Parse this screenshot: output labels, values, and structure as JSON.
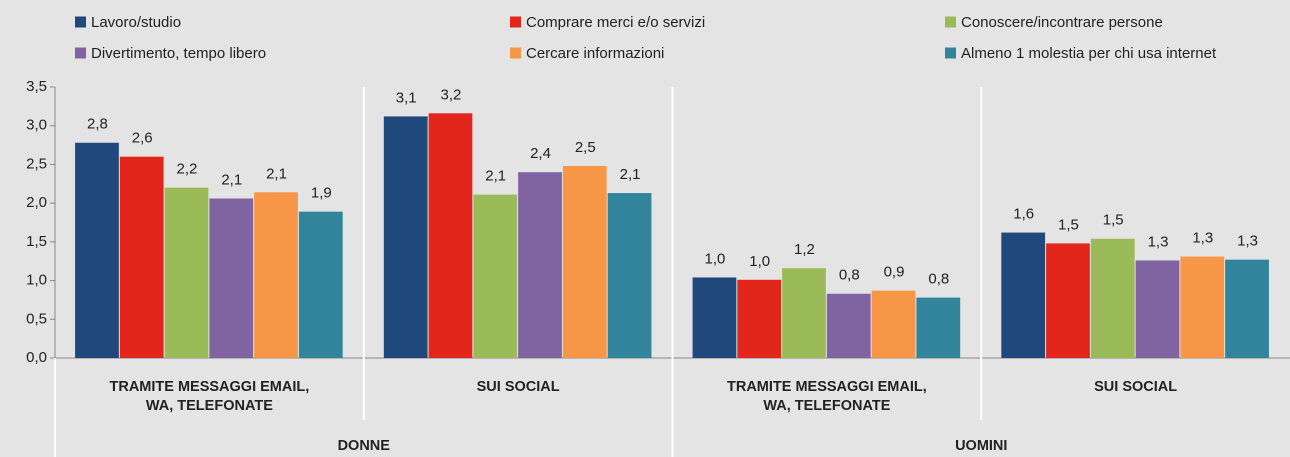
{
  "chart_data": {
    "type": "bar",
    "groups": [
      {
        "name": "DONNE",
        "categories": [
          "TRAMITE MESSAGGI EMAIL, WA, TELEFONATE",
          "SUI SOCIAL"
        ]
      },
      {
        "name": "UOMINI",
        "categories": [
          "TRAMITE MESSAGGI EMAIL, WA, TELEFONATE",
          "SUI SOCIAL"
        ]
      }
    ],
    "series": [
      {
        "name": "Lavoro/studio",
        "color": "#1f497d",
        "values": [
          2.78,
          3.12,
          1.04,
          1.62
        ],
        "value_labels": [
          "2,8",
          "3,1",
          "1,0",
          "1,6"
        ]
      },
      {
        "name": "Comprare merci e/o servizi",
        "color": "#e3261b",
        "values": [
          2.6,
          3.16,
          1.01,
          1.48
        ],
        "value_labels": [
          "2,6",
          "3,2",
          "1,0",
          "1,5"
        ]
      },
      {
        "name": "Conoscere/incontrare persone",
        "color": "#9bbb59",
        "values": [
          2.2,
          2.11,
          1.16,
          1.54
        ],
        "value_labels": [
          "2,2",
          "2,1",
          "1,2",
          "1,5"
        ]
      },
      {
        "name": "Divertimento, tempo libero",
        "color": "#8064a2",
        "values": [
          2.06,
          2.4,
          0.83,
          1.26
        ],
        "value_labels": [
          "2,1",
          "2,4",
          "0,8",
          "1,3"
        ]
      },
      {
        "name": "Cercare informazioni",
        "color": "#f79646",
        "values": [
          2.14,
          2.48,
          0.87,
          1.31
        ],
        "value_labels": [
          "2,1",
          "2,5",
          "0,9",
          "1,3"
        ]
      },
      {
        "name": "Almeno 1 molestia per chi usa internet",
        "color": "#31849b",
        "values": [
          1.89,
          2.13,
          0.78,
          1.27
        ],
        "value_labels": [
          "1,9",
          "2,1",
          "0,8",
          "1,3"
        ]
      }
    ],
    "ylim": [
      0,
      3.5
    ],
    "yticks": [
      {
        "value": 0,
        "label": "0,0"
      },
      {
        "value": 0.5,
        "label": "0,5"
      },
      {
        "value": 1,
        "label": "1,0"
      },
      {
        "value": 1.5,
        "label": "1,5"
      },
      {
        "value": 2,
        "label": "2,0"
      },
      {
        "value": 2.5,
        "label": "2,5"
      },
      {
        "value": 3,
        "label": "3,0"
      },
      {
        "value": 3.5,
        "label": "3,5"
      }
    ],
    "grid": false,
    "legend": "top"
  }
}
